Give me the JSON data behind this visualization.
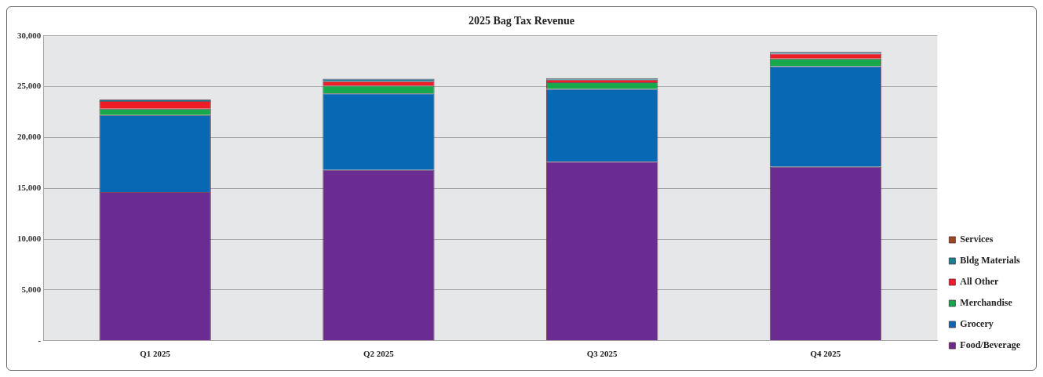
{
  "chart_data": {
    "type": "bar",
    "title": "2025 Bag Tax Revenue",
    "categories": [
      "Q1 2025",
      "Q2 2025",
      "Q3 2025",
      "Q4 2025"
    ],
    "stacked": true,
    "legend": "right",
    "grid": "y",
    "ylim": [
      0,
      30000
    ],
    "yticks": [
      {
        "value": 0,
        "label": "-"
      },
      {
        "value": 5000,
        "label": "5,000"
      },
      {
        "value": 10000,
        "label": "10,000"
      },
      {
        "value": 15000,
        "label": "15,000"
      },
      {
        "value": 20000,
        "label": "20,000"
      },
      {
        "value": 25000,
        "label": "25,000"
      },
      {
        "value": 30000,
        "label": "30,000"
      }
    ],
    "series": [
      {
        "name": "Food/Beverage",
        "color": "#6a2c91",
        "values": [
          14640,
          16810,
          17620,
          17120
        ]
      },
      {
        "name": "Grocery",
        "color": "#0868b4",
        "values": [
          7570,
          7530,
          7150,
          9890
        ]
      },
      {
        "name": "Merchandise",
        "color": "#16a84a",
        "values": [
          630,
          760,
          660,
          750
        ]
      },
      {
        "name": "All Other",
        "color": "#ee1c25",
        "values": [
          750,
          440,
          260,
          480
        ]
      },
      {
        "name": "Bldg Materials",
        "color": "#1b7f93",
        "values": [
          150,
          250,
          150,
          180
        ]
      },
      {
        "name": "Services",
        "color": "#9c4a1c",
        "values": [
          null,
          null,
          null,
          null
        ]
      }
    ]
  }
}
